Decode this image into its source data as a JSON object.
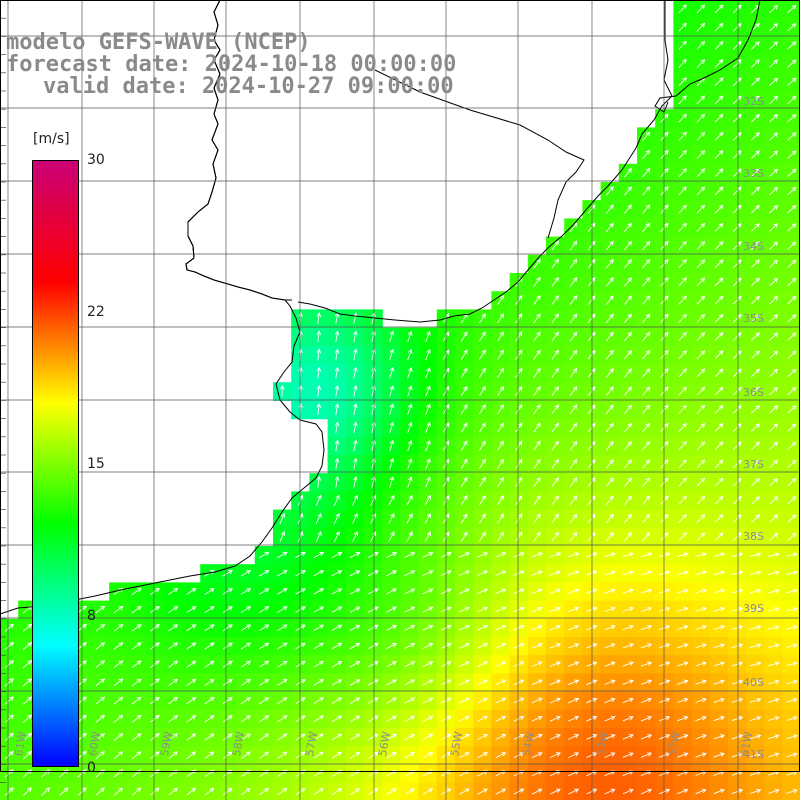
{
  "header": {
    "line1": "modelo GEFS-WAVE (NCEP)",
    "line2": "forecast date: 2024-10-18 00:00:00",
    "line3": "valid date: 2024-10-27 09:00:00"
  },
  "colorbar": {
    "unit": "[m/s]",
    "ticks": [
      "30",
      "22",
      "15",
      "8",
      "0"
    ],
    "min": 0,
    "max": 30,
    "colors": [
      "#0000ff",
      "#00ffff",
      "#00ff00",
      "#ffff00",
      "#ff0000",
      "#cc0077"
    ]
  },
  "grid": {
    "lat_labels": [
      "32S",
      "33S",
      "34S",
      "35S",
      "36S",
      "37S",
      "38S",
      "39S",
      "40S",
      "41S"
    ],
    "lon_labels": [
      "61W",
      "60W",
      "59W",
      "58W",
      "57W",
      "56W",
      "55W",
      "54W",
      "53W",
      "52W",
      "51W"
    ]
  },
  "colors": {
    "land": "#ffffff",
    "coast": "#000000",
    "gridline": "#555555",
    "arrow": "#ffffff",
    "title": "#8a8a8a"
  }
}
